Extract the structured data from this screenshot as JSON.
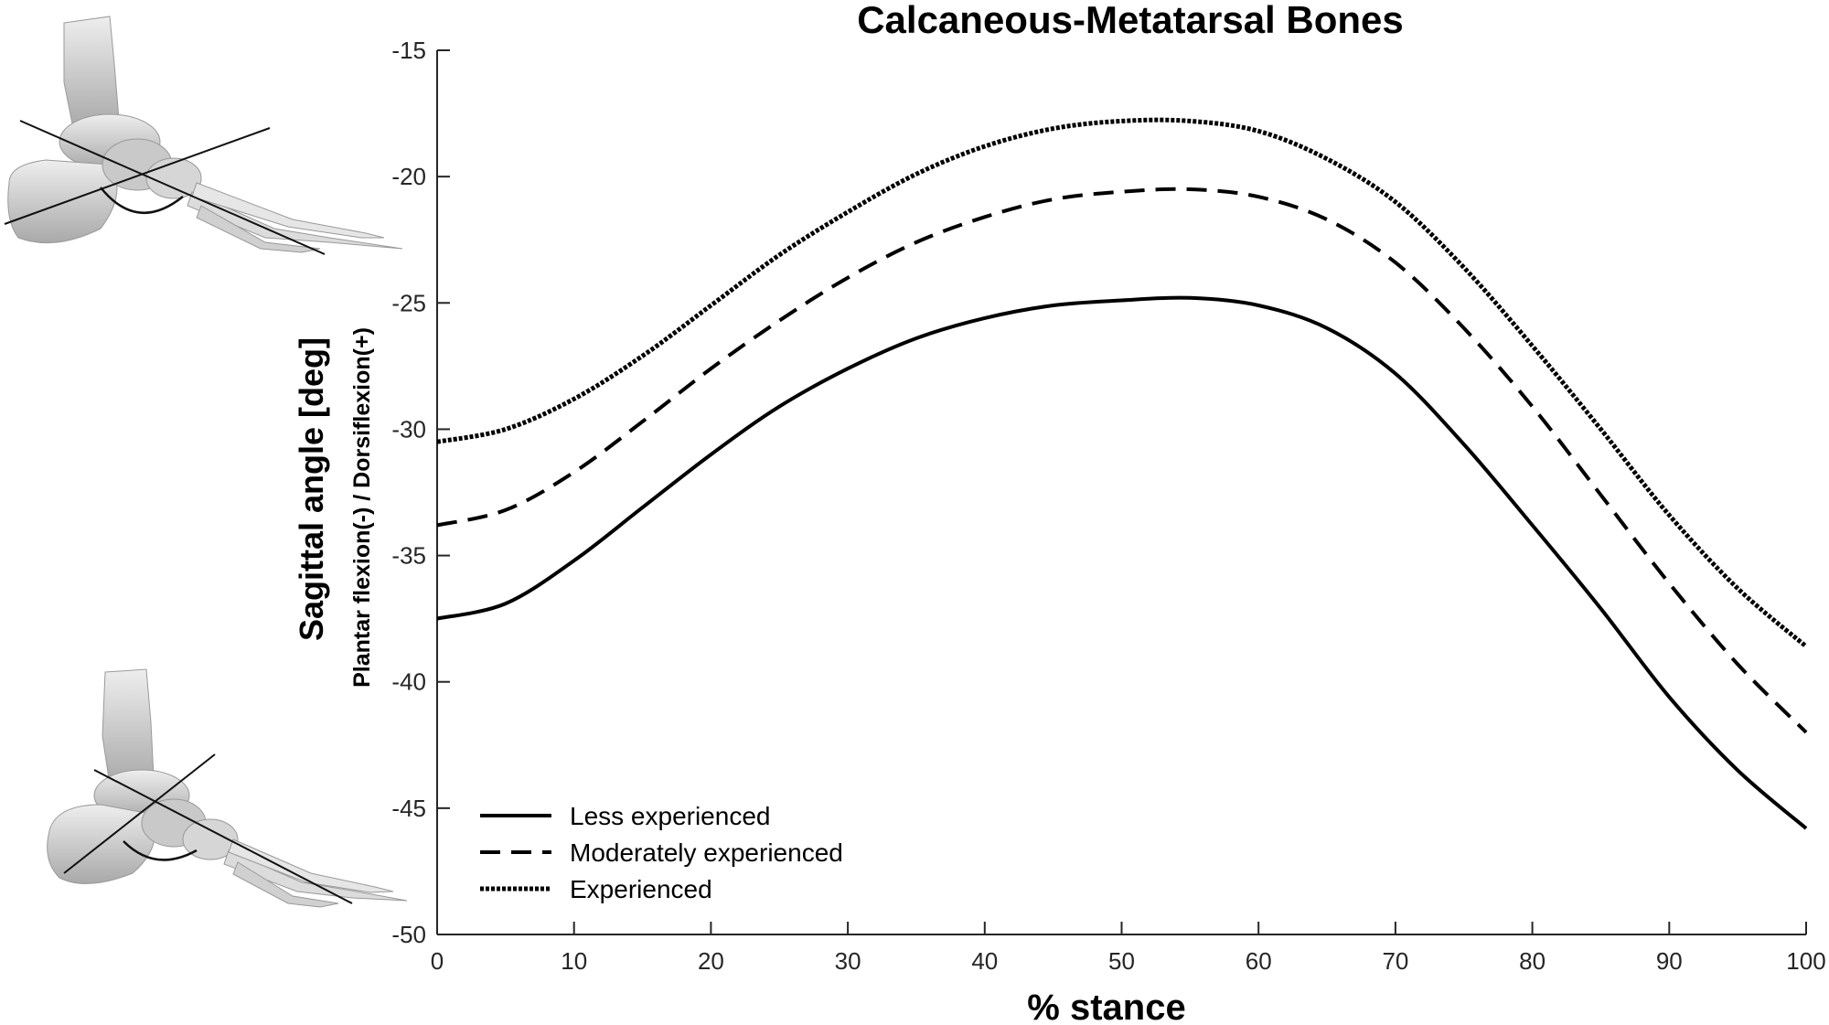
{
  "chart_data": {
    "type": "line",
    "title": "Calcaneous-Metatarsal Bones",
    "xlabel": "% stance",
    "ylabel": "Sagittal angle [deg]",
    "ylabel_sub": "Plantar flexion(-) / Dorsiflexion(+)",
    "xlim": [
      0,
      100
    ],
    "ylim": [
      -50,
      -15
    ],
    "xticks": [
      0,
      10,
      20,
      30,
      40,
      50,
      60,
      70,
      80,
      90,
      100
    ],
    "yticks": [
      -15,
      -20,
      -25,
      -30,
      -35,
      -40,
      -45,
      -50
    ],
    "grid": false,
    "legend_position": "bottom-left",
    "x": [
      0,
      5,
      10,
      15,
      20,
      25,
      30,
      35,
      40,
      45,
      50,
      55,
      60,
      65,
      70,
      75,
      80,
      85,
      90,
      95,
      100
    ],
    "series": [
      {
        "name": "Less experienced",
        "style": "solid",
        "values": [
          -37.5,
          -36.9,
          -35.2,
          -33.1,
          -31.0,
          -29.1,
          -27.6,
          -26.4,
          -25.6,
          -25.1,
          -24.9,
          -24.8,
          -25.1,
          -26.0,
          -27.8,
          -30.6,
          -33.8,
          -37.1,
          -40.6,
          -43.5,
          -45.8
        ]
      },
      {
        "name": "Moderately experienced",
        "style": "dashed",
        "values": [
          -33.8,
          -33.2,
          -31.7,
          -29.7,
          -27.6,
          -25.7,
          -24.0,
          -22.6,
          -21.6,
          -20.9,
          -20.6,
          -20.5,
          -20.8,
          -21.7,
          -23.4,
          -26.0,
          -29.1,
          -32.6,
          -36.1,
          -39.3,
          -42.0
        ]
      },
      {
        "name": "Experienced",
        "style": "dotted",
        "values": [
          -30.5,
          -30.0,
          -28.8,
          -27.1,
          -25.1,
          -23.1,
          -21.4,
          -19.9,
          -18.8,
          -18.1,
          -17.8,
          -17.8,
          -18.2,
          -19.3,
          -21.0,
          -23.6,
          -26.7,
          -30.0,
          -33.4,
          -36.3,
          -38.6
        ]
      }
    ]
  },
  "illustrations": {
    "top": "foot-dorsiflexion-icon",
    "bottom": "foot-plantarflexion-icon"
  }
}
